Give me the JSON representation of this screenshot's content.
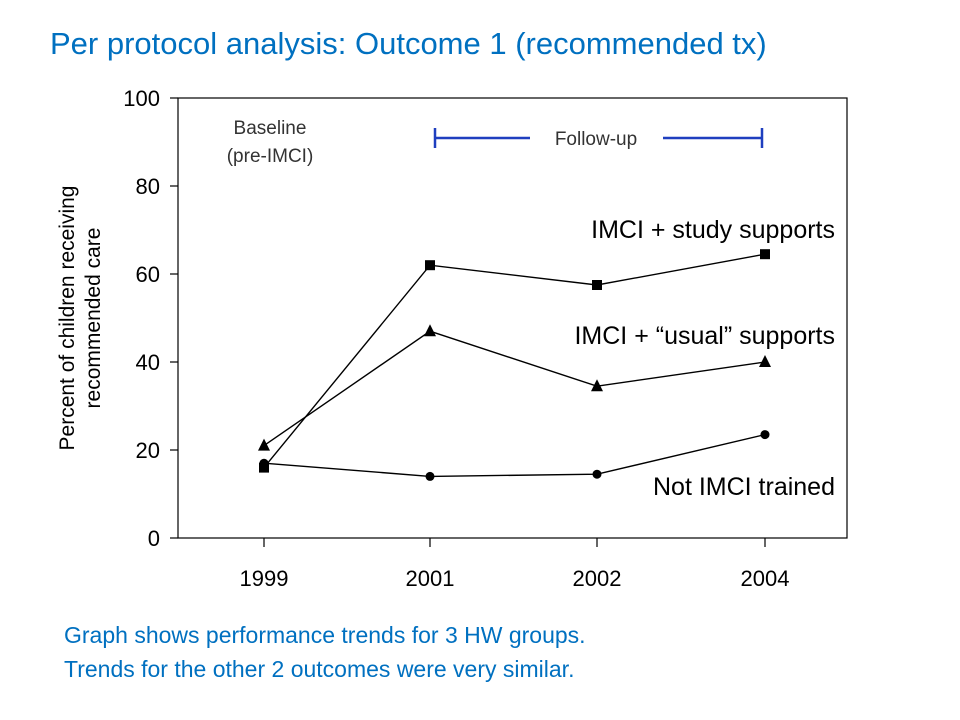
{
  "title": "Per protocol analysis: Outcome 1 (recommended tx)",
  "captions": [
    "Graph shows performance trends for 3 HW groups.",
    "Trends for the other 2 outcomes were very similar."
  ],
  "chart_data": {
    "type": "line",
    "categories": [
      "1999",
      "2001",
      "2002",
      "2004"
    ],
    "ylabel_lines": [
      "Percent of children receiving",
      "recommended care"
    ],
    "ylim": [
      0,
      100
    ],
    "yticks": [
      0,
      20,
      40,
      60,
      80,
      100
    ],
    "grid": false,
    "series": [
      {
        "name": "IMCI + study supports",
        "marker": "square",
        "values": [
          16,
          62,
          57.5,
          64.5
        ]
      },
      {
        "name": "IMCI + “usual” supports",
        "marker": "triangle",
        "values": [
          21,
          47,
          34.5,
          40
        ]
      },
      {
        "name": "Not IMCI trained",
        "marker": "circle",
        "values": [
          17,
          14,
          14.5,
          23.5
        ]
      }
    ],
    "annotations": {
      "baseline": [
        "Baseline",
        "(pre-IMCI)"
      ],
      "followup": "Follow-up",
      "followup_color": "#1F3FBF",
      "followup_span": [
        "2001",
        "2004"
      ]
    }
  }
}
